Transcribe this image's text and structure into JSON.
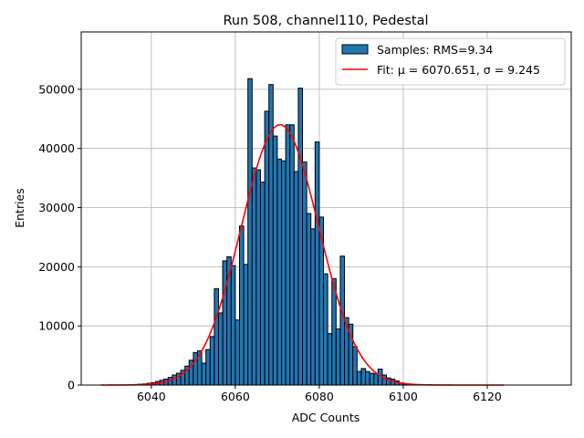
{
  "chart_data": {
    "type": "bar",
    "title": "Run 508, channel110, Pedestal",
    "xlabel": "ADC Counts",
    "ylabel": "Entries",
    "xlim": [
      6023.3,
      6140
    ],
    "ylim": [
      0,
      59700
    ],
    "xticks": [
      6040,
      6060,
      6080,
      6100,
      6120
    ],
    "yticks": [
      0,
      10000,
      20000,
      30000,
      40000,
      50000
    ],
    "grid": true,
    "legend_position": "top-right",
    "histogram": {
      "name": "Samples: RMS=9.34",
      "color": "#1f77b4",
      "bin_width": 1,
      "bin_starts": [
        6036,
        6037,
        6038,
        6039,
        6040,
        6041,
        6042,
        6043,
        6044,
        6045,
        6046,
        6047,
        6048,
        6049,
        6050,
        6051,
        6052,
        6053,
        6054,
        6055,
        6056,
        6057,
        6058,
        6059,
        6060,
        6061,
        6062,
        6063,
        6064,
        6065,
        6066,
        6067,
        6068,
        6069,
        6070,
        6071,
        6072,
        6073,
        6074,
        6075,
        6076,
        6077,
        6078,
        6079,
        6080,
        6081,
        6082,
        6083,
        6084,
        6085,
        6086,
        6087,
        6088,
        6089,
        6090,
        6091,
        6092,
        6093,
        6094,
        6095,
        6096,
        6097,
        6098,
        6099,
        6100,
        6101
      ],
      "values": [
        100,
        150,
        200,
        300,
        400,
        600,
        800,
        1000,
        1300,
        1700,
        2000,
        2500,
        3200,
        4200,
        5500,
        5800,
        3700,
        6000,
        8200,
        16300,
        12200,
        21000,
        21700,
        20200,
        11000,
        26900,
        20400,
        51800,
        36700,
        36400,
        34300,
        46300,
        50800,
        42100,
        38200,
        37900,
        44000,
        44000,
        36100,
        50200,
        37700,
        29000,
        26400,
        41100,
        28400,
        18800,
        8700,
        18000,
        9500,
        21800,
        11400,
        10300,
        6500,
        2300,
        2800,
        2300,
        2000,
        1900,
        2700,
        1700,
        1200,
        1000,
        700,
        400,
        200,
        100
      ]
    },
    "fit": {
      "name": "Fit: μ = 6070.651, σ = 9.245",
      "color": "#ff0000",
      "type": "gaussian",
      "mu": 6070.651,
      "sigma": 9.245,
      "amplitude": 44000,
      "x_range": [
        6028,
        6124
      ]
    }
  }
}
